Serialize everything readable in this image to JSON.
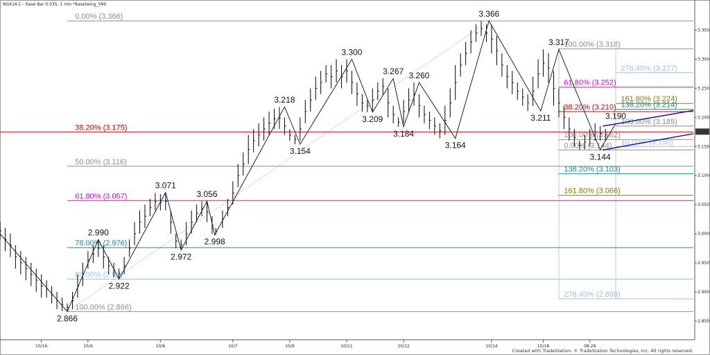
{
  "header": {
    "title": "NGX16.C - Kase Bar 0.035, 1 min   *Kaselwing_V99"
  },
  "credit": "Created with TradeStation. © TradeStation Technologies, Inc. All rights reserved.",
  "last_price": "3.175",
  "colors": {
    "gray": "#8c8c8c",
    "red": "#d40000",
    "magenta": "#e000e0",
    "teal": "#1a8a8a",
    "lightblue": "#9dc3dc",
    "olive": "#8a7a00",
    "blue": "#1414b4",
    "price": "#000000",
    "last_badge": "#3a3a3a"
  },
  "chart_data": {
    "type": "line",
    "title": "NGX16.C - Kase Bar 0.035, 1 min",
    "ylim": [
      2.82,
      3.39
    ],
    "y_ticks": [
      2.85,
      2.9,
      2.95,
      3.0,
      3.05,
      3.1,
      3.15,
      3.2,
      3.25,
      3.3,
      3.35
    ],
    "y_tick_labels": [
      "2.850",
      "2.900",
      "2.950",
      "3.000",
      "3.050",
      "3.100",
      "3.150",
      "3.200",
      "3.250",
      "3.300",
      "3.350"
    ],
    "x_tick_labels": [
      "10/16",
      "10/4",
      "10/6",
      "10/7",
      "10/9",
      "10/11",
      "10/12",
      "10/14",
      "10/18",
      "08:28"
    ],
    "xlim": [
      0,
      134
    ],
    "x_ticks": [
      8,
      17,
      31,
      45,
      56,
      67,
      78,
      95,
      105,
      114
    ],
    "swing_points": [
      {
        "x": 0,
        "y": 3.0
      },
      {
        "x": 13,
        "y": 2.866,
        "label": "2.866"
      },
      {
        "x": 19,
        "y": 2.99,
        "label": "2.990"
      },
      {
        "x": 23,
        "y": 2.922,
        "label": "2.922"
      },
      {
        "x": 32,
        "y": 3.071,
        "label": "3.071"
      },
      {
        "x": 35,
        "y": 2.972,
        "label": "2.972"
      },
      {
        "x": 40,
        "y": 3.056,
        "label": "3.056"
      },
      {
        "x": 41.5,
        "y": 2.998,
        "label": "2.998"
      },
      {
        "x": 55,
        "y": 3.218,
        "label": "3.218"
      },
      {
        "x": 58,
        "y": 3.154,
        "label": "3.154"
      },
      {
        "x": 68,
        "y": 3.3,
        "label": "3.300"
      },
      {
        "x": 72,
        "y": 3.209,
        "label": "3.209"
      },
      {
        "x": 76,
        "y": 3.267,
        "label": "3.267"
      },
      {
        "x": 78,
        "y": 3.184,
        "label": "3.184"
      },
      {
        "x": 81,
        "y": 3.26,
        "label": "3.260"
      },
      {
        "x": 88,
        "y": 3.164,
        "label": "3.164"
      },
      {
        "x": 94.5,
        "y": 3.366,
        "label": "3.366"
      },
      {
        "x": 104.5,
        "y": 3.211,
        "label": "3.211"
      },
      {
        "x": 108,
        "y": 3.317,
        "label": "3.317"
      },
      {
        "x": 116,
        "y": 3.144,
        "label": "3.144"
      },
      {
        "x": 119,
        "y": 3.19,
        "label": "3.190"
      }
    ],
    "bars": [
      [
        0,
        3.02,
        2.99
      ],
      [
        1,
        3.01,
        2.97
      ],
      [
        2,
        3.0,
        2.96
      ],
      [
        3,
        2.98,
        2.94
      ],
      [
        4,
        2.97,
        2.93
      ],
      [
        5,
        2.96,
        2.92
      ],
      [
        6,
        2.95,
        2.91
      ],
      [
        7,
        2.94,
        2.9
      ],
      [
        8,
        2.93,
        2.89
      ],
      [
        9,
        2.92,
        2.89
      ],
      [
        10,
        2.91,
        2.88
      ],
      [
        11,
        2.9,
        2.87
      ],
      [
        12,
        2.89,
        2.867
      ],
      [
        13,
        2.88,
        2.866
      ],
      [
        14,
        2.9,
        2.87
      ],
      [
        15,
        2.93,
        2.89
      ],
      [
        16,
        2.95,
        2.91
      ],
      [
        17,
        2.97,
        2.94
      ],
      [
        18,
        2.98,
        2.95
      ],
      [
        19,
        2.99,
        2.96
      ],
      [
        20,
        2.98,
        2.94
      ],
      [
        21,
        2.96,
        2.93
      ],
      [
        22,
        2.95,
        2.925
      ],
      [
        23,
        2.94,
        2.922
      ],
      [
        24,
        2.96,
        2.93
      ],
      [
        25,
        2.99,
        2.96
      ],
      [
        26,
        3.02,
        2.98
      ],
      [
        27,
        3.04,
        3.0
      ],
      [
        28,
        3.05,
        3.01
      ],
      [
        29,
        3.06,
        3.03
      ],
      [
        30,
        3.07,
        3.04
      ],
      [
        31,
        3.068,
        3.04
      ],
      [
        32,
        3.071,
        3.04
      ],
      [
        33,
        3.04,
        3.0
      ],
      [
        34,
        3.0,
        2.975
      ],
      [
        35,
        2.99,
        2.972
      ],
      [
        36,
        3.02,
        2.98
      ],
      [
        37,
        3.04,
        3.0
      ],
      [
        38,
        3.05,
        3.02
      ],
      [
        39,
        3.056,
        3.03
      ],
      [
        40,
        3.055,
        3.02
      ],
      [
        41,
        3.03,
        3.0
      ],
      [
        41.7,
        3.01,
        2.998
      ],
      [
        43,
        3.04,
        3.01
      ],
      [
        44,
        3.06,
        3.03
      ],
      [
        45,
        3.09,
        3.05
      ],
      [
        46,
        3.12,
        3.08
      ],
      [
        47,
        3.14,
        3.1
      ],
      [
        48,
        3.17,
        3.12
      ],
      [
        49,
        3.18,
        3.14
      ],
      [
        50,
        3.19,
        3.15
      ],
      [
        51,
        3.2,
        3.16
      ],
      [
        52,
        3.21,
        3.17
      ],
      [
        53,
        3.215,
        3.18
      ],
      [
        54,
        3.218,
        3.18
      ],
      [
        55,
        3.2,
        3.17
      ],
      [
        56,
        3.18,
        3.16
      ],
      [
        57,
        3.17,
        3.154
      ],
      [
        58,
        3.2,
        3.16
      ],
      [
        59,
        3.23,
        3.19
      ],
      [
        60,
        3.25,
        3.21
      ],
      [
        61,
        3.27,
        3.23
      ],
      [
        62,
        3.28,
        3.24
      ],
      [
        63,
        3.29,
        3.26
      ],
      [
        64,
        3.29,
        3.25
      ],
      [
        65,
        3.3,
        3.26
      ],
      [
        66,
        3.29,
        3.25
      ],
      [
        67,
        3.3,
        3.26
      ],
      [
        68,
        3.28,
        3.24
      ],
      [
        69,
        3.26,
        3.22
      ],
      [
        70,
        3.24,
        3.21
      ],
      [
        71,
        3.23,
        3.209
      ],
      [
        72,
        3.25,
        3.21
      ],
      [
        73,
        3.26,
        3.23
      ],
      [
        74,
        3.267,
        3.24
      ],
      [
        75,
        3.25,
        3.2
      ],
      [
        76,
        3.22,
        3.19
      ],
      [
        77,
        3.2,
        3.184
      ],
      [
        78,
        3.23,
        3.19
      ],
      [
        79,
        3.25,
        3.21
      ],
      [
        80,
        3.26,
        3.22
      ],
      [
        81,
        3.24,
        3.2
      ],
      [
        82,
        3.22,
        3.19
      ],
      [
        83,
        3.21,
        3.18
      ],
      [
        84,
        3.2,
        3.17
      ],
      [
        85,
        3.19,
        3.164
      ],
      [
        86,
        3.22,
        3.17
      ],
      [
        87,
        3.25,
        3.2
      ],
      [
        88,
        3.29,
        3.23
      ],
      [
        89,
        3.31,
        3.27
      ],
      [
        90,
        3.33,
        3.29
      ],
      [
        91,
        3.35,
        3.31
      ],
      [
        92,
        3.36,
        3.33
      ],
      [
        93,
        3.366,
        3.34
      ],
      [
        94,
        3.36,
        3.33
      ],
      [
        95,
        3.36,
        3.31
      ],
      [
        96,
        3.34,
        3.29
      ],
      [
        97,
        3.31,
        3.27
      ],
      [
        98,
        3.29,
        3.25
      ],
      [
        99,
        3.28,
        3.24
      ],
      [
        100,
        3.26,
        3.23
      ],
      [
        101,
        3.25,
        3.22
      ],
      [
        102,
        3.24,
        3.211
      ],
      [
        103,
        3.27,
        3.22
      ],
      [
        104,
        3.3,
        3.25
      ],
      [
        105,
        3.317,
        3.27
      ],
      [
        106,
        3.31,
        3.26
      ],
      [
        107,
        3.28,
        3.22
      ],
      [
        108,
        3.25,
        3.2
      ],
      [
        109,
        3.22,
        3.18
      ],
      [
        110,
        3.2,
        3.16
      ],
      [
        111,
        3.18,
        3.15
      ],
      [
        112,
        3.16,
        3.144
      ],
      [
        113,
        3.17,
        3.145
      ],
      [
        114,
        3.18,
        3.15
      ],
      [
        115,
        3.19,
        3.16
      ],
      [
        116,
        3.185,
        3.16
      ],
      [
        117,
        3.18,
        3.16
      ]
    ],
    "fib_levels": [
      {
        "label": "0.00% (3.366)",
        "y": 3.366,
        "color": "gray",
        "x0": 13,
        "x1": 134,
        "lx": 14.5
      },
      {
        "label": "38.20% (3.175)",
        "y": 3.175,
        "color": "red",
        "x0": 0,
        "x1": 134,
        "lx": 14.5
      },
      {
        "label": "50.00% (3.116)",
        "y": 3.116,
        "color": "gray",
        "x0": 13,
        "x1": 134,
        "lx": 14.5
      },
      {
        "label": "61.80% (3.057)",
        "y": 3.057,
        "color": "magenta",
        "x0": 13,
        "x1": 134,
        "lx": 14.5
      },
      {
        "label": "78.00% (2.976)",
        "y": 2.976,
        "color": "teal",
        "x0": 13,
        "x1": 134,
        "lx": 14.5
      },
      {
        "label": "89.00% (2.92)",
        "y": 2.922,
        "color": "lightblue",
        "x0": 13,
        "x1": 134,
        "lx": 14.5
      },
      {
        "label": "100.00% (2.866)",
        "y": 2.866,
        "color": "gray",
        "x0": 13,
        "x1": 134,
        "lx": 14.5
      },
      {
        "label": "100.00% (3.318)",
        "y": 3.318,
        "color": "gray",
        "x0": 108,
        "x1": 134,
        "lx": 109
      },
      {
        "label": "276.40% (3.277)",
        "y": 3.277,
        "color": "lightblue",
        "x0": 119,
        "x1": 134,
        "lx": 120
      },
      {
        "label": "61.80% (3.252)",
        "y": 3.252,
        "color": "magenta",
        "x0": 108,
        "x1": 134,
        "lx": 109
      },
      {
        "label": "161.80% (3.224)",
        "y": 3.224,
        "color": "olive",
        "x0": 119,
        "x1": 134,
        "lx": 120
      },
      {
        "label": "138.20% (3.214)",
        "y": 3.214,
        "color": "teal",
        "x0": 119,
        "x1": 134,
        "lx": 120
      },
      {
        "label": "38.20% (3.210)",
        "y": 3.21,
        "color": "red",
        "x0": 108,
        "x1": 134,
        "lx": 109
      },
      {
        "label": "100.00% (3.185)",
        "y": 3.185,
        "color": "gray",
        "x0": 119,
        "x1": 134,
        "lx": 120
      },
      {
        "label": "100.00% (3.162)",
        "y": 3.162,
        "color": "gray",
        "x0": 108,
        "x1": 134,
        "lx": 109
      },
      {
        "label": "0.00% (3.144)",
        "y": 3.144,
        "color": "gray",
        "x0": 108,
        "x1": 134,
        "lx": 109
      },
      {
        "label": "10.00% (3.150)",
        "y": 3.15,
        "color": "lightblue",
        "x0": 119,
        "x1": 134,
        "lx": 120
      },
      {
        "label": "138.20% (3.103)",
        "y": 3.103,
        "color": "teal",
        "x0": 108,
        "x1": 134,
        "lx": 109
      },
      {
        "label": "161.80% (3.066)",
        "y": 3.066,
        "color": "olive",
        "x0": 108,
        "x1": 134,
        "lx": 109
      },
      {
        "label": "276.40% (2.888)",
        "y": 2.888,
        "color": "lightblue",
        "x0": 108,
        "x1": 134,
        "lx": 109
      }
    ],
    "trendlines": [
      {
        "x0": 116.5,
        "y0": 3.185,
        "x1": 134,
        "y1": 3.212,
        "color": "blue"
      },
      {
        "x0": 116.5,
        "y0": 3.144,
        "x1": 134,
        "y1": 3.172,
        "color": "blue"
      }
    ],
    "guide_line": {
      "x0": 13,
      "y0": 2.866,
      "x1": 94.5,
      "y1": 3.366
    },
    "vertical_guides": [
      108,
      119
    ]
  }
}
